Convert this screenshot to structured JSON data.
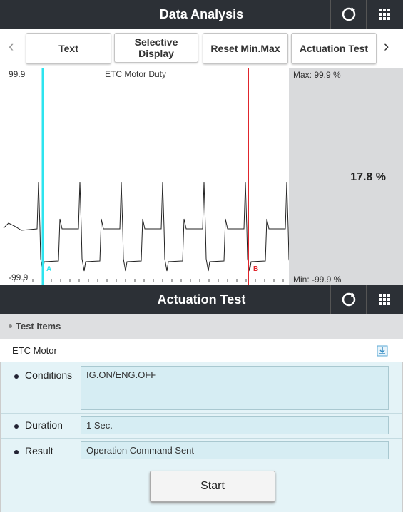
{
  "header": {
    "title": "Data Analysis"
  },
  "tabs": [
    "Text",
    "Selective Display",
    "Reset Min.Max",
    "Actuation Test"
  ],
  "graph": {
    "title": "ETC Motor Duty",
    "y_max_label": "99.9",
    "y_min_label": "-99.9",
    "cursor_a": "A",
    "cursor_b": "B",
    "max": "Max: 99.9 %",
    "min": "Min: -99.9 %",
    "current": "17.8 %"
  },
  "panel": {
    "title": "Actuation Test",
    "section": "Test Items",
    "item": "ETC Motor",
    "rows": [
      {
        "label": "Conditions",
        "value": "IG.ON/ENG.OFF"
      },
      {
        "label": "Duration",
        "value": "1 Sec."
      },
      {
        "label": "Result",
        "value": "Operation Command Sent"
      }
    ],
    "button": "Start"
  }
}
